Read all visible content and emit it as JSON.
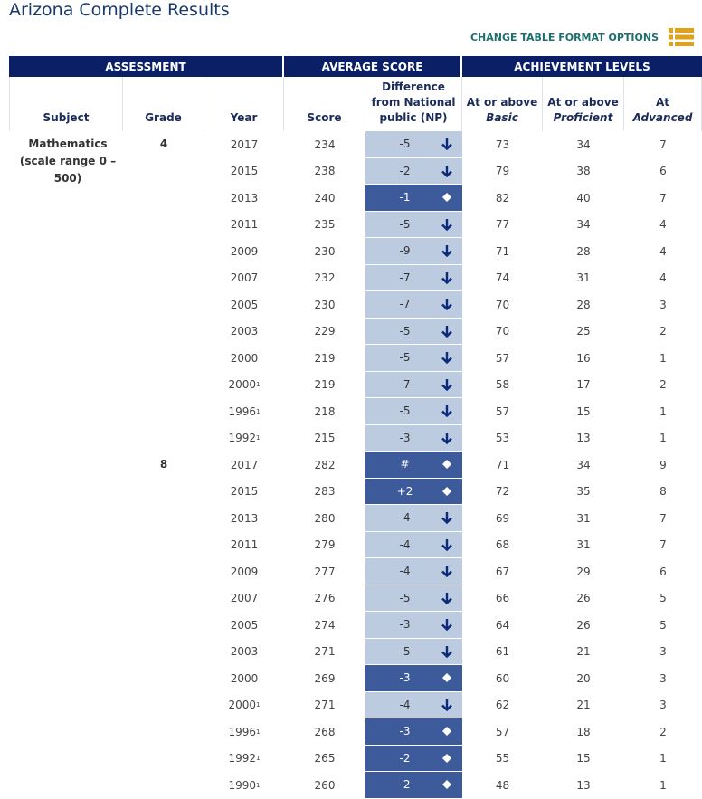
{
  "title": "Arizona Complete Results",
  "options_link": "CHANGE TABLE FORMAT OPTIONS",
  "header_groups": [
    "ASSESSMENT",
    "AVERAGE SCORE",
    "ACHIEVEMENT LEVELS"
  ],
  "columns": [
    {
      "text": "Subject"
    },
    {
      "text": "Grade"
    },
    {
      "text": "Year"
    },
    {
      "text": "Score"
    },
    {
      "text": "Difference from National public (NP)"
    },
    {
      "text": "At or above",
      "em": "Basic"
    },
    {
      "text": "At or above",
      "em": "Proficient"
    },
    {
      "text": "At",
      "em": "Advanced"
    }
  ],
  "subject": "Mathematics (scale range 0 –500)",
  "grades": [
    {
      "grade": "4",
      "rows": [
        {
          "year": "2017",
          "score": 234,
          "difference": "-5",
          "basic": 73,
          "proficient": 34,
          "advanced": 7,
          "significantly_lower": true
        },
        {
          "year": "2015",
          "score": 238,
          "difference": "-2",
          "basic": 79,
          "proficient": 38,
          "advanced": 6,
          "significantly_lower": true
        },
        {
          "year": "2013",
          "score": 240,
          "difference": "-1",
          "basic": 82,
          "proficient": 40,
          "advanced": 7,
          "significantly_lower": false
        },
        {
          "year": "2011",
          "score": 235,
          "difference": "-5",
          "basic": 77,
          "proficient": 34,
          "advanced": 4,
          "significantly_lower": true
        },
        {
          "year": "2009",
          "score": 230,
          "difference": "-9",
          "basic": 71,
          "proficient": 28,
          "advanced": 4,
          "significantly_lower": true
        },
        {
          "year": "2007",
          "score": 232,
          "difference": "-7",
          "basic": 74,
          "proficient": 31,
          "advanced": 4,
          "significantly_lower": true
        },
        {
          "year": "2005",
          "score": 230,
          "difference": "-7",
          "basic": 70,
          "proficient": 28,
          "advanced": 3,
          "significantly_lower": true
        },
        {
          "year": "2003",
          "score": 229,
          "difference": "-5",
          "basic": 70,
          "proficient": 25,
          "advanced": 2,
          "significantly_lower": true
        },
        {
          "year": "2000",
          "score": 219,
          "difference": "-5",
          "basic": 57,
          "proficient": 16,
          "advanced": 1,
          "significantly_lower": true
        },
        {
          "year": "2000",
          "footnote": "1",
          "score": 219,
          "difference": "-7",
          "basic": 58,
          "proficient": 17,
          "advanced": 2,
          "significantly_lower": true
        },
        {
          "year": "1996",
          "footnote": "1",
          "score": 218,
          "difference": "-5",
          "basic": 57,
          "proficient": 15,
          "advanced": 1,
          "significantly_lower": true
        },
        {
          "year": "1992",
          "footnote": "1",
          "score": 215,
          "difference": "-3",
          "basic": 53,
          "proficient": 13,
          "advanced": 1,
          "significantly_lower": true
        }
      ]
    },
    {
      "grade": "8",
      "rows": [
        {
          "year": "2017",
          "score": 282,
          "difference": "#",
          "basic": 71,
          "proficient": 34,
          "advanced": 9,
          "significantly_lower": false
        },
        {
          "year": "2015",
          "score": 283,
          "difference": "+2",
          "basic": 72,
          "proficient": 35,
          "advanced": 8,
          "significantly_lower": false
        },
        {
          "year": "2013",
          "score": 280,
          "difference": "-4",
          "basic": 69,
          "proficient": 31,
          "advanced": 7,
          "significantly_lower": true
        },
        {
          "year": "2011",
          "score": 279,
          "difference": "-4",
          "basic": 68,
          "proficient": 31,
          "advanced": 7,
          "significantly_lower": true
        },
        {
          "year": "2009",
          "score": 277,
          "difference": "-4",
          "basic": 67,
          "proficient": 29,
          "advanced": 6,
          "significantly_lower": true
        },
        {
          "year": "2007",
          "score": 276,
          "difference": "-5",
          "basic": 66,
          "proficient": 26,
          "advanced": 5,
          "significantly_lower": true
        },
        {
          "year": "2005",
          "score": 274,
          "difference": "-3",
          "basic": 64,
          "proficient": 26,
          "advanced": 5,
          "significantly_lower": true
        },
        {
          "year": "2003",
          "score": 271,
          "difference": "-5",
          "basic": 61,
          "proficient": 21,
          "advanced": 3,
          "significantly_lower": true
        },
        {
          "year": "2000",
          "score": 269,
          "difference": "-3",
          "basic": 60,
          "proficient": 20,
          "advanced": 3,
          "significantly_lower": false
        },
        {
          "year": "2000",
          "footnote": "1",
          "score": 271,
          "difference": "-4",
          "basic": 62,
          "proficient": 21,
          "advanced": 3,
          "significantly_lower": true
        },
        {
          "year": "1996",
          "footnote": "1",
          "score": 268,
          "difference": "-3",
          "basic": 57,
          "proficient": 18,
          "advanced": 2,
          "significantly_lower": false
        },
        {
          "year": "1992",
          "footnote": "1",
          "score": 265,
          "difference": "-2",
          "basic": 55,
          "proficient": 15,
          "advanced": 1,
          "significantly_lower": false
        },
        {
          "year": "1990",
          "footnote": "1",
          "score": 260,
          "difference": "-2",
          "basic": 48,
          "proficient": 13,
          "advanced": 1,
          "significantly_lower": false
        }
      ]
    }
  ]
}
